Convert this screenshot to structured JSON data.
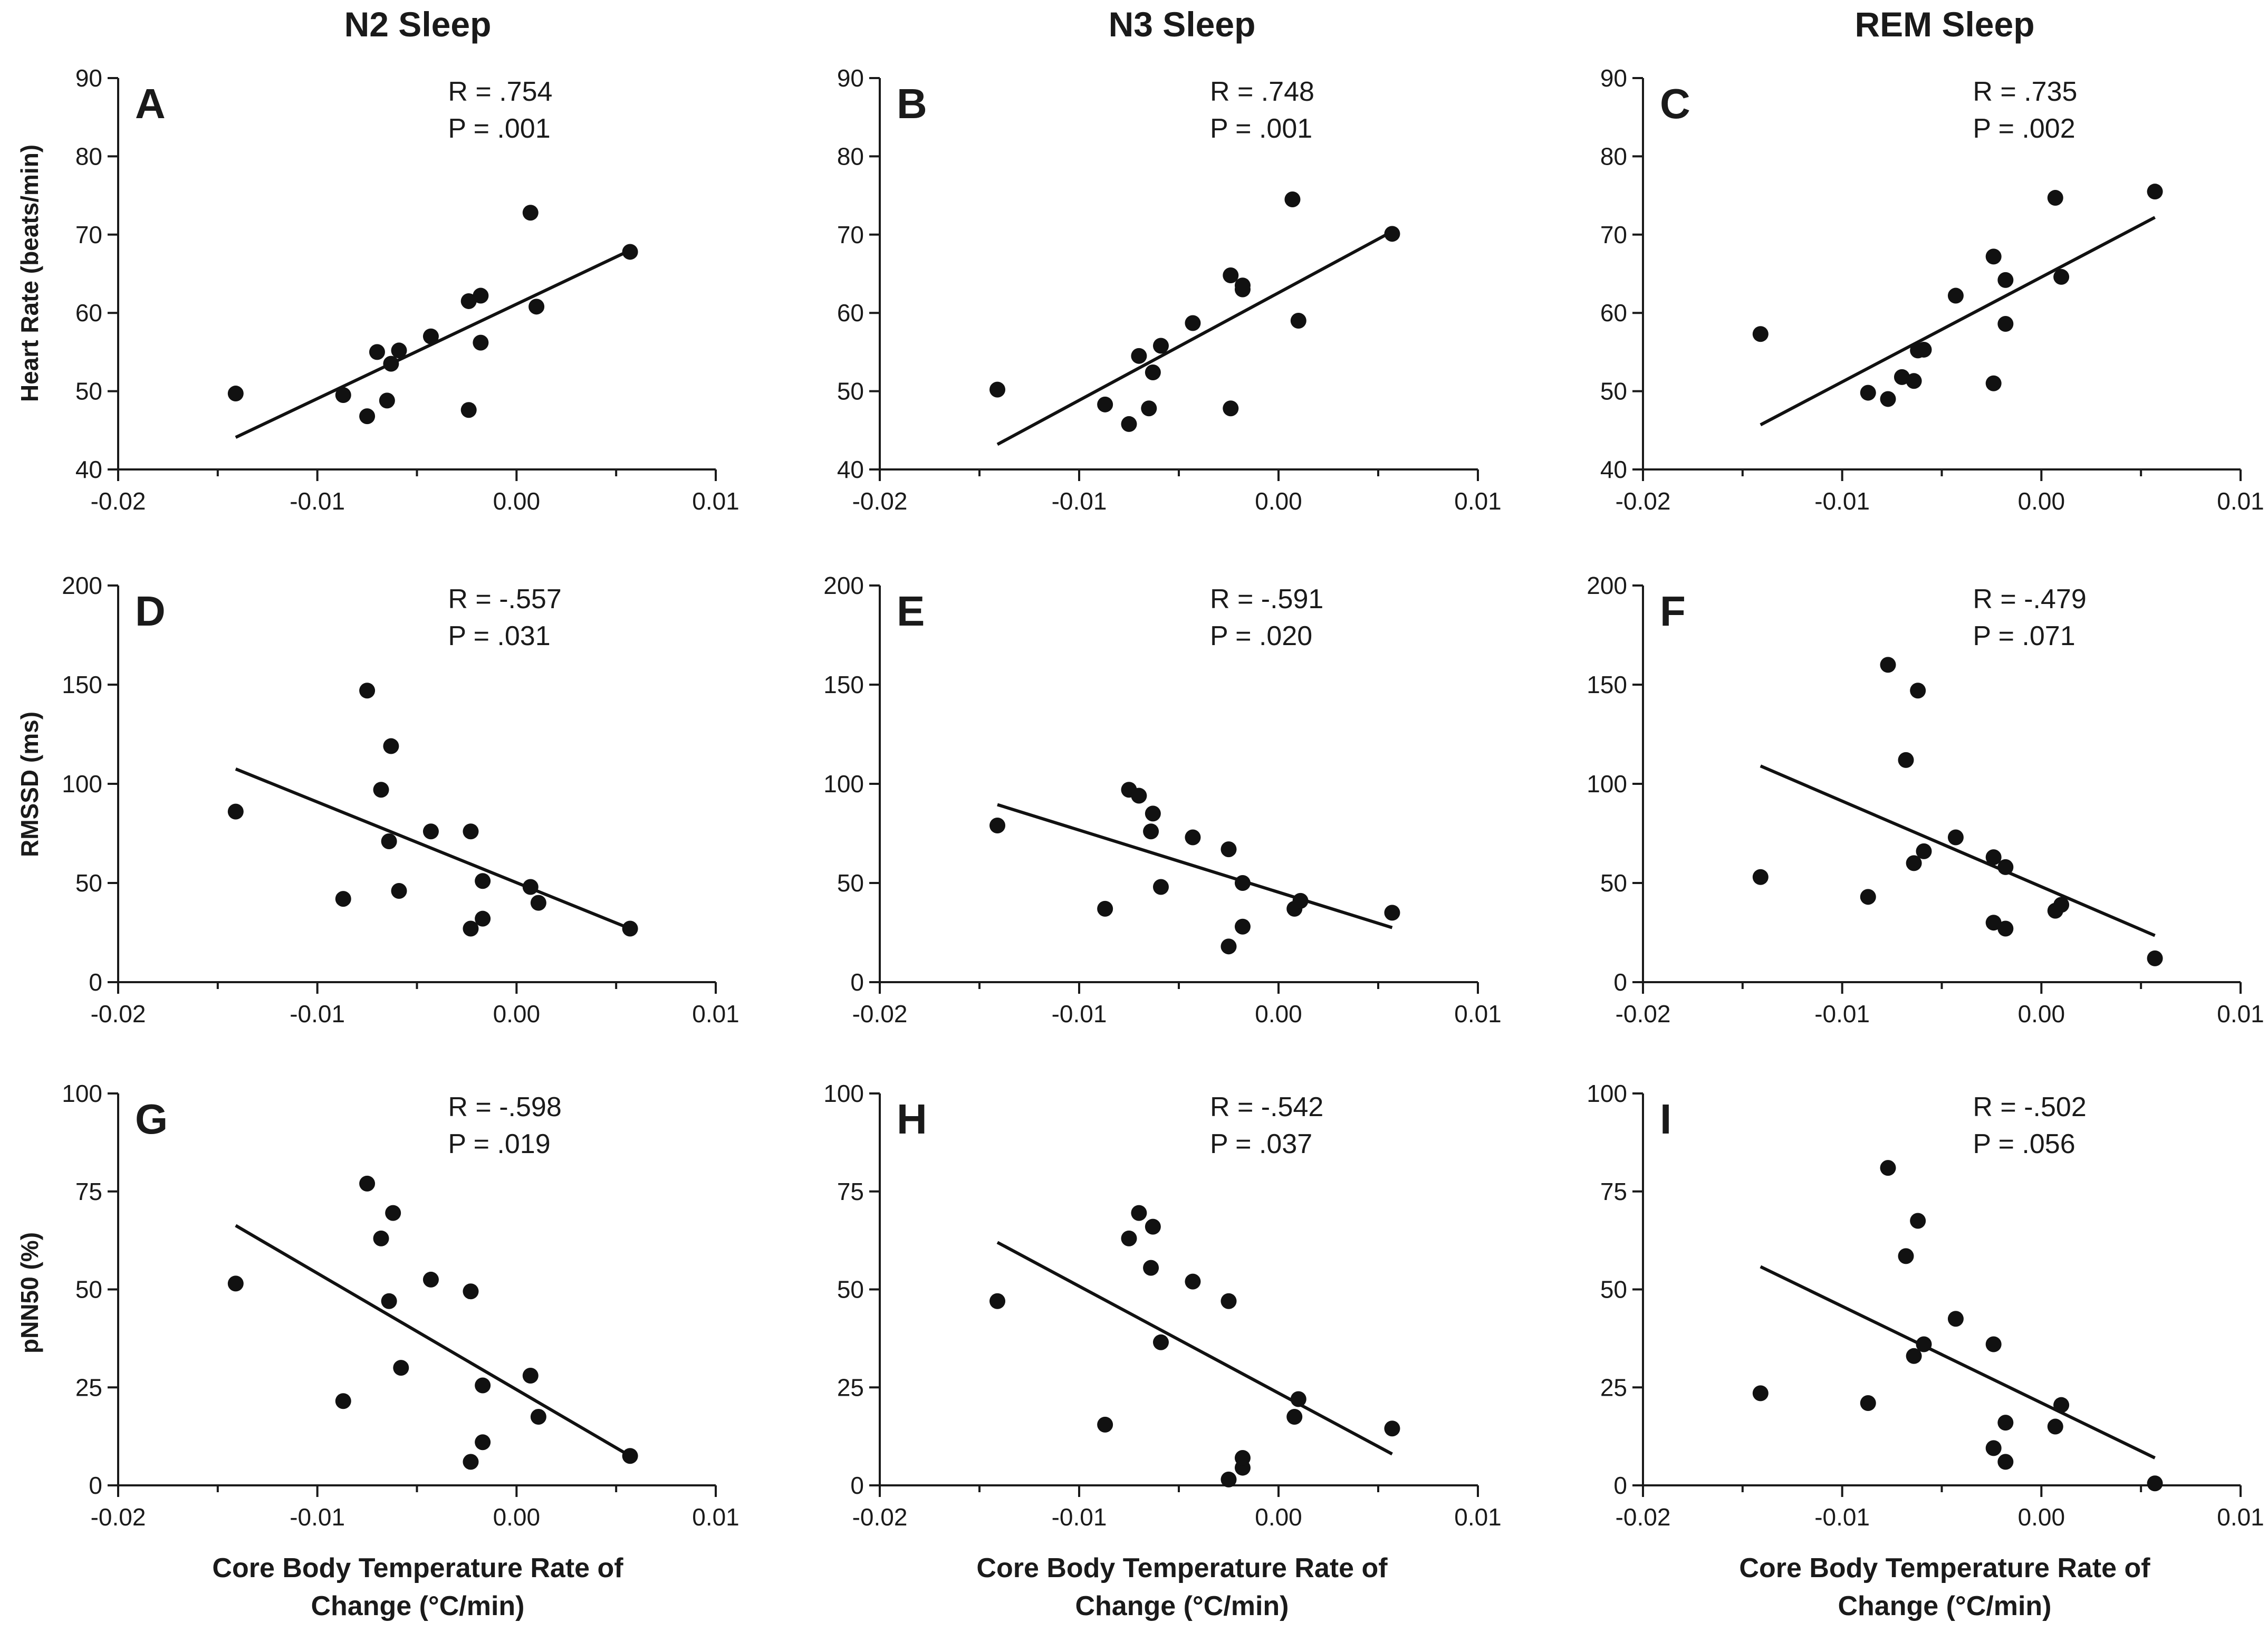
{
  "column_titles": [
    "N2  Sleep",
    "N3  Sleep",
    "REM  Sleep"
  ],
  "row_ylabels": [
    "Heart Rate (beats/min)",
    "RMSSD (ms)",
    "pNN50 (%)"
  ],
  "xlabel_line1": "Core Body Temperature Rate of",
  "xlabel_line2": "Change (°C/min)",
  "colors": {
    "points": "#111111",
    "line": "#111111",
    "axis": "#1a1a1a",
    "background": "#ffffff"
  },
  "chart_data": [
    {
      "type": "scatter",
      "panel": "A",
      "column": "N2  Sleep",
      "ylabel": "Heart Rate (beats/min)",
      "xlim": [
        -0.02,
        0.01
      ],
      "ylim": [
        40,
        90
      ],
      "xticks": [
        "-0.02",
        "-0.01",
        "0.00",
        "0.01"
      ],
      "yticks": [
        "40",
        "50",
        "60",
        "70",
        "80",
        "90"
      ],
      "stat_r": "R = .754",
      "stat_p": "P = .001",
      "fit": [
        [
          -0.0141,
          44.1
        ],
        [
          0.0057,
          68.0
        ]
      ],
      "points": [
        [
          -0.0141,
          49.7
        ],
        [
          -0.0087,
          49.5
        ],
        [
          -0.0075,
          46.8
        ],
        [
          -0.007,
          55.0
        ],
        [
          -0.0065,
          48.8
        ],
        [
          -0.0063,
          53.5
        ],
        [
          -0.0059,
          55.2
        ],
        [
          -0.0043,
          57.0
        ],
        [
          -0.0024,
          47.6
        ],
        [
          -0.0024,
          61.5
        ],
        [
          -0.0018,
          56.2
        ],
        [
          -0.0018,
          62.2
        ],
        [
          0.0007,
          72.8
        ],
        [
          0.001,
          60.8
        ],
        [
          0.0057,
          67.8
        ]
      ]
    },
    {
      "type": "scatter",
      "panel": "B",
      "column": "N3  Sleep",
      "ylabel": "",
      "xlim": [
        -0.02,
        0.01
      ],
      "ylim": [
        40,
        90
      ],
      "xticks": [
        "-0.02",
        "-0.01",
        "0.00",
        "0.01"
      ],
      "yticks": [
        "40",
        "50",
        "60",
        "70",
        "80",
        "90"
      ],
      "stat_r": "R = .748",
      "stat_p": "P = .001",
      "fit": [
        [
          -0.0141,
          43.2
        ],
        [
          0.0057,
          70.4
        ]
      ],
      "points": [
        [
          -0.0141,
          50.2
        ],
        [
          -0.0087,
          48.3
        ],
        [
          -0.0075,
          45.8
        ],
        [
          -0.007,
          54.5
        ],
        [
          -0.0065,
          47.8
        ],
        [
          -0.0063,
          52.4
        ],
        [
          -0.0059,
          55.8
        ],
        [
          -0.0043,
          58.7
        ],
        [
          -0.0024,
          47.8
        ],
        [
          -0.0024,
          64.8
        ],
        [
          -0.0018,
          63.0
        ],
        [
          -0.0018,
          63.5
        ],
        [
          0.0007,
          74.5
        ],
        [
          0.001,
          59.0
        ],
        [
          0.0057,
          70.1
        ]
      ]
    },
    {
      "type": "scatter",
      "panel": "C",
      "column": "REM  Sleep",
      "ylabel": "",
      "xlim": [
        -0.02,
        0.01
      ],
      "ylim": [
        40,
        90
      ],
      "xticks": [
        "-0.02",
        "-0.01",
        "0.00",
        "0.01"
      ],
      "yticks": [
        "40",
        "50",
        "60",
        "70",
        "80",
        "90"
      ],
      "stat_r": "R = .735",
      "stat_p": "P = .002",
      "fit": [
        [
          -0.0141,
          45.7
        ],
        [
          0.0057,
          72.2
        ]
      ],
      "points": [
        [
          -0.0141,
          57.3
        ],
        [
          -0.0087,
          49.8
        ],
        [
          -0.0077,
          49.0
        ],
        [
          -0.007,
          51.8
        ],
        [
          -0.0064,
          51.3
        ],
        [
          -0.0062,
          55.2
        ],
        [
          -0.0059,
          55.3
        ],
        [
          -0.0043,
          62.2
        ],
        [
          -0.0024,
          51.0
        ],
        [
          -0.0024,
          67.2
        ],
        [
          -0.0018,
          64.2
        ],
        [
          -0.0018,
          58.6
        ],
        [
          0.0007,
          74.7
        ],
        [
          0.001,
          64.6
        ],
        [
          0.0057,
          75.5
        ]
      ]
    },
    {
      "type": "scatter",
      "panel": "D",
      "column": "N2  Sleep",
      "ylabel": "RMSSD (ms)",
      "xlim": [
        -0.02,
        0.01
      ],
      "ylim": [
        0,
        200
      ],
      "xticks": [
        "-0.02",
        "-0.01",
        "0.00",
        "0.01"
      ],
      "yticks": [
        "0",
        "50",
        "100",
        "150",
        "200"
      ],
      "stat_r": "R = -.557",
      "stat_p": "P = .031",
      "fit": [
        [
          -0.0141,
          107.5
        ],
        [
          0.0057,
          27.0
        ]
      ],
      "points": [
        [
          -0.0141,
          86.0
        ],
        [
          -0.0087,
          42.0
        ],
        [
          -0.0075,
          147.0
        ],
        [
          -0.0068,
          97.0
        ],
        [
          -0.0064,
          71.0
        ],
        [
          -0.0063,
          119.0
        ],
        [
          -0.0059,
          46.0
        ],
        [
          -0.0043,
          76.0
        ],
        [
          -0.0023,
          27.0
        ],
        [
          -0.0023,
          76.0
        ],
        [
          -0.0017,
          32.0
        ],
        [
          -0.0017,
          51.0
        ],
        [
          0.0007,
          48.0
        ],
        [
          0.0011,
          40.0
        ],
        [
          0.0057,
          27.0
        ]
      ]
    },
    {
      "type": "scatter",
      "panel": "E",
      "column": "N3  Sleep",
      "ylabel": "",
      "xlim": [
        -0.02,
        0.01
      ],
      "ylim": [
        0,
        200
      ],
      "xticks": [
        "-0.02",
        "-0.01",
        "0.00",
        "0.01"
      ],
      "yticks": [
        "0",
        "50",
        "100",
        "150",
        "200"
      ],
      "stat_r": "R = -.591",
      "stat_p": "P = .020",
      "fit": [
        [
          -0.0141,
          89.5
        ],
        [
          0.0057,
          27.5
        ]
      ],
      "points": [
        [
          -0.0141,
          79.0
        ],
        [
          -0.0087,
          37.0
        ],
        [
          -0.0075,
          97.0
        ],
        [
          -0.007,
          94.0
        ],
        [
          -0.0064,
          76.0
        ],
        [
          -0.0063,
          85.0
        ],
        [
          -0.0059,
          48.0
        ],
        [
          -0.0043,
          73.0
        ],
        [
          -0.0025,
          18.0
        ],
        [
          -0.0025,
          67.0
        ],
        [
          -0.0018,
          28.0
        ],
        [
          -0.0018,
          50.0
        ],
        [
          0.0008,
          37.0
        ],
        [
          0.0011,
          41.0
        ],
        [
          0.0057,
          35.0
        ]
      ]
    },
    {
      "type": "scatter",
      "panel": "F",
      "column": "REM  Sleep",
      "ylabel": "",
      "xlim": [
        -0.02,
        0.01
      ],
      "ylim": [
        0,
        200
      ],
      "xticks": [
        "-0.02",
        "-0.01",
        "0.00",
        "0.01"
      ],
      "yticks": [
        "0",
        "50",
        "100",
        "150",
        "200"
      ],
      "stat_r": "R = -.479",
      "stat_p": "P = .071",
      "fit": [
        [
          -0.0141,
          109.0
        ],
        [
          0.0057,
          23.5
        ]
      ],
      "points": [
        [
          -0.0141,
          53.0
        ],
        [
          -0.0087,
          43.0
        ],
        [
          -0.0077,
          160.0
        ],
        [
          -0.0068,
          112.0
        ],
        [
          -0.0064,
          60.0
        ],
        [
          -0.0062,
          147.0
        ],
        [
          -0.0059,
          66.0
        ],
        [
          -0.0043,
          73.0
        ],
        [
          -0.0024,
          63.0
        ],
        [
          -0.0024,
          30.0
        ],
        [
          -0.0018,
          58.0
        ],
        [
          -0.0018,
          27.0
        ],
        [
          0.0007,
          36.0
        ],
        [
          0.001,
          39.0
        ],
        [
          0.0057,
          12.0
        ]
      ]
    },
    {
      "type": "scatter",
      "panel": "G",
      "column": "N2  Sleep",
      "ylabel": "pNN50 (%)",
      "xlim": [
        -0.02,
        0.01
      ],
      "ylim": [
        0,
        100
      ],
      "xticks": [
        "-0.02",
        "-0.01",
        "0.00",
        "0.01"
      ],
      "yticks": [
        "0",
        "25",
        "50",
        "75",
        "100"
      ],
      "stat_r": "R = -.598",
      "stat_p": "P = .019",
      "fit": [
        [
          -0.0141,
          66.3
        ],
        [
          0.0057,
          7.5
        ]
      ],
      "points": [
        [
          -0.0141,
          51.5
        ],
        [
          -0.0087,
          21.5
        ],
        [
          -0.0075,
          77.0
        ],
        [
          -0.0068,
          63.0
        ],
        [
          -0.0064,
          47.0
        ],
        [
          -0.0062,
          69.5
        ],
        [
          -0.0058,
          30.0
        ],
        [
          -0.0043,
          52.5
        ],
        [
          -0.0023,
          6.0
        ],
        [
          -0.0023,
          49.5
        ],
        [
          -0.0017,
          11.0
        ],
        [
          -0.0017,
          25.5
        ],
        [
          0.0007,
          28.0
        ],
        [
          0.0011,
          17.5
        ],
        [
          0.0057,
          7.5
        ]
      ]
    },
    {
      "type": "scatter",
      "panel": "H",
      "column": "N3  Sleep",
      "ylabel": "",
      "xlim": [
        -0.02,
        0.01
      ],
      "ylim": [
        0,
        100
      ],
      "xticks": [
        "-0.02",
        "-0.01",
        "0.00",
        "0.01"
      ],
      "yticks": [
        "0",
        "25",
        "50",
        "75",
        "100"
      ],
      "stat_r": "R = -.542",
      "stat_p": "P = .037",
      "fit": [
        [
          -0.0141,
          62.0
        ],
        [
          0.0057,
          8.0
        ]
      ],
      "points": [
        [
          -0.0141,
          47.0
        ],
        [
          -0.0087,
          15.5
        ],
        [
          -0.0075,
          63.0
        ],
        [
          -0.007,
          69.5
        ],
        [
          -0.0064,
          55.5
        ],
        [
          -0.0063,
          66.0
        ],
        [
          -0.0059,
          36.5
        ],
        [
          -0.0043,
          52.0
        ],
        [
          -0.0025,
          1.5
        ],
        [
          -0.0025,
          47.0
        ],
        [
          -0.0018,
          4.5
        ],
        [
          -0.0018,
          7.0
        ],
        [
          0.0008,
          17.5
        ],
        [
          0.001,
          22.0
        ],
        [
          0.0057,
          14.5
        ]
      ]
    },
    {
      "type": "scatter",
      "panel": "I",
      "column": "REM  Sleep",
      "ylabel": "",
      "xlim": [
        -0.02,
        0.01
      ],
      "ylim": [
        0,
        100
      ],
      "xticks": [
        "-0.02",
        "-0.01",
        "0.00",
        "0.01"
      ],
      "yticks": [
        "0",
        "25",
        "50",
        "75",
        "100"
      ],
      "stat_r": "R = -.502",
      "stat_p": "P = .056",
      "fit": [
        [
          -0.0141,
          55.8
        ],
        [
          0.0057,
          7.0
        ]
      ],
      "points": [
        [
          -0.0141,
          23.5
        ],
        [
          -0.0087,
          21.0
        ],
        [
          -0.0077,
          81.0
        ],
        [
          -0.0068,
          58.5
        ],
        [
          -0.0064,
          33.0
        ],
        [
          -0.0062,
          67.5
        ],
        [
          -0.0059,
          36.0
        ],
        [
          -0.0043,
          42.5
        ],
        [
          -0.0024,
          9.5
        ],
        [
          -0.0024,
          36.0
        ],
        [
          -0.0018,
          6.0
        ],
        [
          -0.0018,
          16.0
        ],
        [
          0.0007,
          15.0
        ],
        [
          0.001,
          20.5
        ],
        [
          0.0057,
          0.5
        ]
      ]
    }
  ]
}
